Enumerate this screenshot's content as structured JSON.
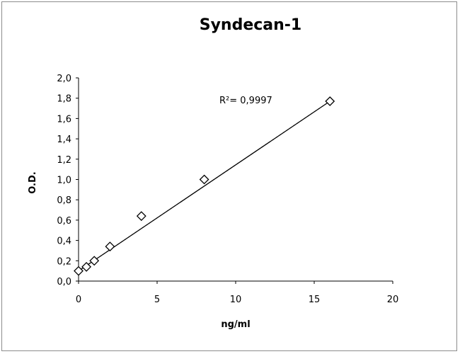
{
  "chart_data": {
    "type": "scatter",
    "title": "Syndecan-1",
    "xlabel": "ng/ml",
    "ylabel": "O.D.",
    "xlim": [
      0,
      20
    ],
    "ylim": [
      0,
      2.0
    ],
    "x_ticks": [
      0,
      5,
      10,
      15,
      20
    ],
    "y_ticks": [
      0.0,
      0.2,
      0.4,
      0.6,
      0.8,
      1.0,
      1.2,
      1.4,
      1.6,
      1.8,
      2.0
    ],
    "x_tick_labels": [
      "0",
      "5",
      "10",
      "15",
      "20"
    ],
    "y_tick_labels": [
      "0,0",
      "0,2",
      "0,4",
      "0,6",
      "0,8",
      "1,0",
      "1,2",
      "1,4",
      "1,6",
      "1,8",
      "2,0"
    ],
    "grid": false,
    "legend": "none",
    "marker": "diamond",
    "series": [
      {
        "x": [
          0,
          0.5,
          1,
          2,
          4,
          8,
          16
        ],
        "y": [
          0.1,
          0.14,
          0.2,
          0.34,
          0.64,
          1.0,
          1.77
        ]
      }
    ],
    "trendline": {
      "type": "linear",
      "from": [
        0,
        0.1
      ],
      "to": [
        16,
        1.77
      ]
    },
    "annotation": "R²= 0,9997"
  }
}
